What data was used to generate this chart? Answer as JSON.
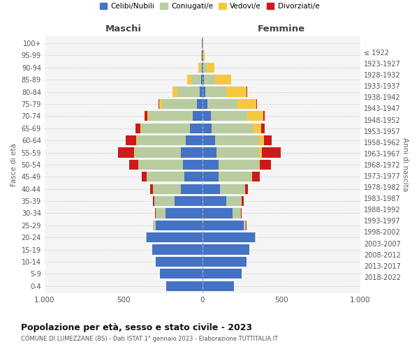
{
  "age_groups": [
    "0-4",
    "5-9",
    "10-14",
    "15-19",
    "20-24",
    "25-29",
    "30-34",
    "35-39",
    "40-44",
    "45-49",
    "50-54",
    "55-59",
    "60-64",
    "65-69",
    "70-74",
    "75-79",
    "80-84",
    "85-89",
    "90-94",
    "95-99",
    "100+"
  ],
  "birth_years": [
    "2018-2022",
    "2013-2017",
    "2008-2012",
    "2003-2007",
    "1998-2002",
    "1993-1997",
    "1988-1992",
    "1983-1987",
    "1978-1982",
    "1973-1977",
    "1968-1972",
    "1963-1967",
    "1958-1962",
    "1953-1957",
    "1948-1952",
    "1943-1947",
    "1938-1942",
    "1933-1937",
    "1928-1932",
    "1923-1927",
    "≤ 1922"
  ],
  "colors": {
    "celibe": "#4472c4",
    "coniugato": "#b8cca0",
    "vedovo": "#f5c842",
    "divorziato": "#cc1a1a"
  },
  "maschi": {
    "celibe": [
      230,
      270,
      295,
      320,
      355,
      295,
      235,
      175,
      135,
      115,
      125,
      135,
      105,
      80,
      60,
      35,
      18,
      10,
      5,
      3,
      2
    ],
    "coniugato": [
      0,
      0,
      0,
      0,
      5,
      18,
      60,
      130,
      180,
      240,
      280,
      295,
      310,
      310,
      280,
      220,
      140,
      60,
      10,
      2,
      0
    ],
    "vedovo": [
      0,
      0,
      0,
      0,
      0,
      0,
      0,
      0,
      0,
      0,
      2,
      3,
      5,
      5,
      10,
      20,
      30,
      25,
      10,
      3,
      0
    ],
    "divorziato": [
      0,
      0,
      0,
      0,
      0,
      2,
      5,
      10,
      15,
      30,
      55,
      100,
      65,
      30,
      15,
      5,
      0,
      0,
      0,
      0,
      0
    ]
  },
  "femmine": {
    "nubile": [
      200,
      250,
      280,
      295,
      330,
      260,
      190,
      150,
      110,
      100,
      100,
      90,
      80,
      60,
      55,
      30,
      20,
      10,
      5,
      3,
      2
    ],
    "coniugata": [
      0,
      0,
      0,
      0,
      5,
      15,
      55,
      100,
      160,
      210,
      260,
      270,
      280,
      260,
      230,
      190,
      130,
      70,
      20,
      2,
      0
    ],
    "vedova": [
      0,
      0,
      0,
      0,
      0,
      0,
      0,
      0,
      2,
      3,
      5,
      15,
      30,
      50,
      100,
      120,
      130,
      100,
      50,
      10,
      2
    ],
    "divorziata": [
      0,
      0,
      0,
      0,
      0,
      2,
      5,
      10,
      15,
      50,
      70,
      120,
      50,
      25,
      10,
      5,
      5,
      0,
      0,
      0,
      0
    ]
  },
  "xlim": 1000,
  "title_main": "Popolazione per età, sesso e stato civile - 2023",
  "title_sub": "COMUNE DI LUMEZZANE (BS) - Dati ISTAT 1° gennaio 2023 - Elaborazione TUTTITALIA.IT",
  "ylabel": "Fasce di età",
  "xlabel_right": "Anni di nascita",
  "legend_labels": [
    "Celibi/Nubili",
    "Coniugati/e",
    "Vedovi/e",
    "Divorziati/e"
  ],
  "legend_colors": [
    "#4472c4",
    "#b8cca0",
    "#f5c842",
    "#cc1a1a"
  ],
  "background_color": "#ffffff",
  "grid_color": "#cccccc",
  "maschi_label": "Maschi",
  "femmine_label": "Femmine"
}
